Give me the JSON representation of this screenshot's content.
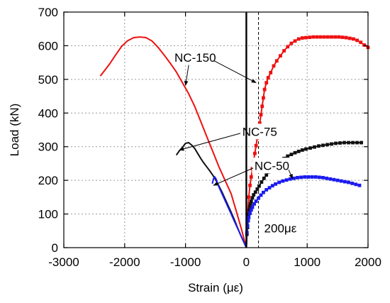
{
  "chart_data": {
    "type": "line",
    "xlabel": "Strain (με)",
    "ylabel": "Load (kN)",
    "xlim": [
      -3000,
      2000
    ],
    "ylim": [
      0,
      700
    ],
    "xticks": [
      -3000,
      -2000,
      -1000,
      0,
      1000,
      2000
    ],
    "yticks": [
      0,
      100,
      200,
      300,
      400,
      500,
      600,
      700
    ],
    "xtick_labels": [
      "-3000",
      "-2000",
      "-1000",
      "0",
      "1000",
      "2000"
    ],
    "ytick_labels": [
      "0",
      "100",
      "200",
      "300",
      "400",
      "500",
      "600",
      "700"
    ],
    "grid": true,
    "grid_style": "dotted",
    "reference_line": {
      "x": 200,
      "label": "200με"
    },
    "series": [
      {
        "name": "NC-150",
        "color": "#ee1111",
        "compression": {
          "x": [
            0,
            -80,
            -160,
            -250,
            -350,
            -450,
            -550,
            -650,
            -750,
            -850,
            -950,
            -1050,
            -1150,
            -1250,
            -1350,
            -1450,
            -1550,
            -1650,
            -1750,
            -1850,
            -1950,
            -2050,
            -2150,
            -2250,
            -2400
          ],
          "y": [
            0,
            55,
            105,
            160,
            200,
            240,
            285,
            330,
            375,
            420,
            458,
            490,
            522,
            548,
            572,
            595,
            614,
            624,
            626,
            624,
            615,
            598,
            572,
            545,
            510
          ]
        },
        "tension": {
          "x": [
            0,
            20,
            40,
            60,
            80,
            100,
            120,
            140,
            160,
            180,
            200,
            220,
            240,
            260,
            280,
            300,
            330,
            360,
            400,
            450,
            500,
            560,
            620,
            680,
            740,
            800,
            860,
            920,
            980,
            1040,
            1100,
            1160,
            1220,
            1280,
            1340,
            1400,
            1460,
            1520,
            1580,
            1640,
            1700,
            1760,
            1820,
            1880,
            1940,
            2000
          ],
          "y": [
            0,
            100,
            150,
            185,
            210,
            235,
            258,
            280,
            303,
            325,
            347,
            370,
            395,
            420,
            445,
            470,
            490,
            505,
            520,
            540,
            555,
            570,
            585,
            597,
            607,
            614,
            620,
            623,
            624,
            625,
            626,
            626,
            626,
            626,
            626,
            626,
            626,
            626,
            625,
            624,
            622,
            620,
            616,
            610,
            602,
            595
          ]
        }
      },
      {
        "name": "NC-75",
        "color": "#111111",
        "compression": {
          "x": [
            0,
            -50,
            -100,
            -150,
            -200,
            -250,
            -300,
            -350,
            -400,
            -450,
            -500,
            -550,
            -600,
            -650,
            -700,
            -750,
            -800,
            -850,
            -900,
            -950,
            -1000,
            -1050,
            -1100,
            -1150
          ],
          "y": [
            0,
            20,
            40,
            62,
            85,
            105,
            125,
            145,
            165,
            183,
            200,
            215,
            228,
            240,
            252,
            265,
            280,
            295,
            305,
            312,
            310,
            298,
            288,
            275
          ]
        },
        "tension": {
          "x": [
            0,
            10,
            20,
            30,
            40,
            50,
            60,
            70,
            80,
            100,
            120,
            150,
            180,
            210,
            250,
            290,
            330,
            370,
            420,
            470,
            520,
            570,
            620,
            680,
            740,
            800,
            860,
            920,
            980,
            1050,
            1120,
            1190,
            1260,
            1330,
            1400,
            1470,
            1540,
            1610,
            1680,
            1750,
            1820,
            1890
          ],
          "y": [
            0,
            40,
            60,
            80,
            100,
            112,
            122,
            130,
            138,
            148,
            157,
            165,
            174,
            183,
            195,
            206,
            216,
            225,
            235,
            244,
            252,
            259,
            265,
            272,
            277,
            282,
            286,
            290,
            293,
            296,
            299,
            302,
            304,
            306,
            308,
            310,
            311,
            312,
            312,
            312,
            312,
            312
          ]
        }
      },
      {
        "name": "NC-50",
        "color": "#1a1aee",
        "compression": {
          "x": [
            0,
            -50,
            -100,
            -150,
            -200,
            -250,
            -300,
            -350,
            -400,
            -450,
            -480,
            -500,
            -520,
            -540,
            -560
          ],
          "y": [
            0,
            20,
            40,
            60,
            80,
            100,
            120,
            140,
            160,
            180,
            195,
            205,
            210,
            205,
            190
          ]
        },
        "tension": {
          "x": [
            0,
            10,
            20,
            30,
            40,
            60,
            80,
            100,
            130,
            160,
            200,
            240,
            280,
            330,
            380,
            430,
            480,
            540,
            600,
            660,
            720,
            780,
            840,
            900,
            960,
            1020,
            1080,
            1140,
            1200,
            1260,
            1320,
            1380,
            1440,
            1500,
            1560,
            1620,
            1680,
            1740,
            1800,
            1860
          ],
          "y": [
            0,
            45,
            65,
            80,
            90,
            102,
            112,
            120,
            130,
            138,
            147,
            156,
            164,
            172,
            178,
            184,
            189,
            194,
            198,
            201,
            204,
            206,
            208,
            209,
            210,
            210,
            210,
            210,
            209,
            208,
            206,
            204,
            202,
            200,
            198,
            196,
            194,
            191,
            188,
            185
          ]
        }
      }
    ],
    "annotations": [
      {
        "text": "NC-150",
        "label_x": -840,
        "label_y": 565,
        "arrow_to_x": -1000,
        "arrow_to_y": 482,
        "arrow2_to_x": 160,
        "arrow2_to_y": 490
      },
      {
        "text": "NC-75",
        "label_x": 220,
        "label_y": 345,
        "arrow_to_x": -1100,
        "arrow_to_y": 290
      },
      {
        "text": "NC-50",
        "label_x": 420,
        "label_y": 244,
        "arrow_to_x": -540,
        "arrow_to_y": 185,
        "arrow2_to_x": 760,
        "arrow2_to_y": 205
      }
    ]
  }
}
